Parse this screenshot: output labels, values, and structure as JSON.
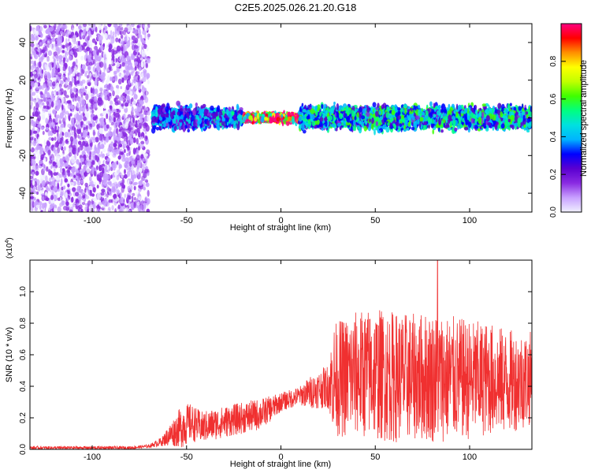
{
  "title": "C2E5.2025.026.21.20.G18",
  "colors": {
    "snr_line": "#f03030",
    "background": "#ffffff",
    "axis": "#000000",
    "colormap": [
      "#f0f0ff",
      "#c8a0ff",
      "#8a2be2",
      "#5a00d0",
      "#0000ff",
      "#00b4ff",
      "#00e0e0",
      "#00ff80",
      "#40ff00",
      "#c0ff00",
      "#ffff00",
      "#ff9000",
      "#ff0000",
      "#ff0080"
    ]
  },
  "chart_data": [
    {
      "type": "heatmap",
      "title": "",
      "xlabel": "Height of straight line (km)",
      "ylabel": "Frequency (Hz)",
      "xlim": [
        -133,
        133
      ],
      "ylim": [
        -50,
        50
      ],
      "xticks": [
        "-100",
        "-50",
        "0",
        "50",
        "100"
      ],
      "xtick_values": [
        -100,
        -50,
        0,
        50,
        100
      ],
      "yticks": [
        "40",
        "20",
        "0",
        "-20",
        "-40"
      ],
      "ytick_values": [
        40,
        20,
        0,
        -20,
        -40
      ],
      "colorbar": {
        "label": "Normalized spectral amplitude",
        "range": [
          0,
          1
        ],
        "ticks": [
          "0.0",
          "0.2",
          "0.4",
          "0.6",
          "0.8"
        ],
        "tick_values": [
          0.0,
          0.2,
          0.4,
          0.6,
          0.8
        ]
      },
      "regions": [
        {
          "x_range": [
            -133,
            -70
          ],
          "freq_range": [
            -50,
            50
          ],
          "amplitude": 0.1,
          "description_value": "broadband noise"
        },
        {
          "x_range": [
            -68,
            -40
          ],
          "freq_range": [
            -8,
            8
          ],
          "amplitude": 0.35
        },
        {
          "x_range": [
            -40,
            -20
          ],
          "freq_range": [
            -6,
            6
          ],
          "amplitude": 0.4
        },
        {
          "x_range": [
            -20,
            10
          ],
          "freq_range": [
            -3,
            3
          ],
          "amplitude": 0.95
        },
        {
          "x_range": [
            10,
            133
          ],
          "freq_range": [
            -8,
            8
          ],
          "amplitude": 0.45
        }
      ]
    },
    {
      "type": "line",
      "title": "",
      "xlabel": "Height of straight line (km)",
      "ylabel": "SNR (10 * v/v)",
      "y_multiplier": "(x10^4)",
      "xlim": [
        -133,
        133
      ],
      "ylim": [
        0,
        1.2
      ],
      "xticks": [
        "-100",
        "-50",
        "0",
        "50",
        "100"
      ],
      "xtick_values": [
        -100,
        -50,
        0,
        50,
        100
      ],
      "yticks": [
        "0.0",
        "0.2",
        "0.4",
        "0.6",
        "0.8",
        "1.0"
      ],
      "ytick_values": [
        0.0,
        0.2,
        0.4,
        0.6,
        0.8,
        1.0
      ],
      "series": [
        {
          "envelope": {
            "x": [
              -133,
              -110,
              -80,
              -70,
              -63,
              -58,
              -52,
              -48,
              -42,
              -35,
              -28,
              -20,
              -12,
              -5,
              0,
              5,
              10,
              15,
              20,
              25,
              28,
              32,
              40,
              50,
              60,
              70,
              80,
              90,
              100,
              110,
              120,
              133
            ],
            "mean": [
              0.01,
              0.01,
              0.01,
              0.02,
              0.05,
              0.1,
              0.15,
              0.17,
              0.14,
              0.16,
              0.18,
              0.2,
              0.22,
              0.26,
              0.3,
              0.32,
              0.34,
              0.36,
              0.38,
              0.4,
              0.45,
              0.45,
              0.48,
              0.48,
              0.46,
              0.46,
              0.46,
              0.45,
              0.44,
              0.45,
              0.43,
              0.45
            ],
            "amplitude": [
              0.01,
              0.01,
              0.01,
              0.01,
              0.03,
              0.08,
              0.14,
              0.12,
              0.1,
              0.1,
              0.1,
              0.1,
              0.1,
              0.08,
              0.06,
              0.06,
              0.06,
              0.1,
              0.12,
              0.14,
              0.35,
              0.38,
              0.4,
              0.42,
              0.42,
              0.4,
              0.42,
              0.4,
              0.38,
              0.36,
              0.33,
              0.3
            ]
          },
          "peak": {
            "x": 83,
            "y": 1.2
          }
        }
      ]
    }
  ]
}
